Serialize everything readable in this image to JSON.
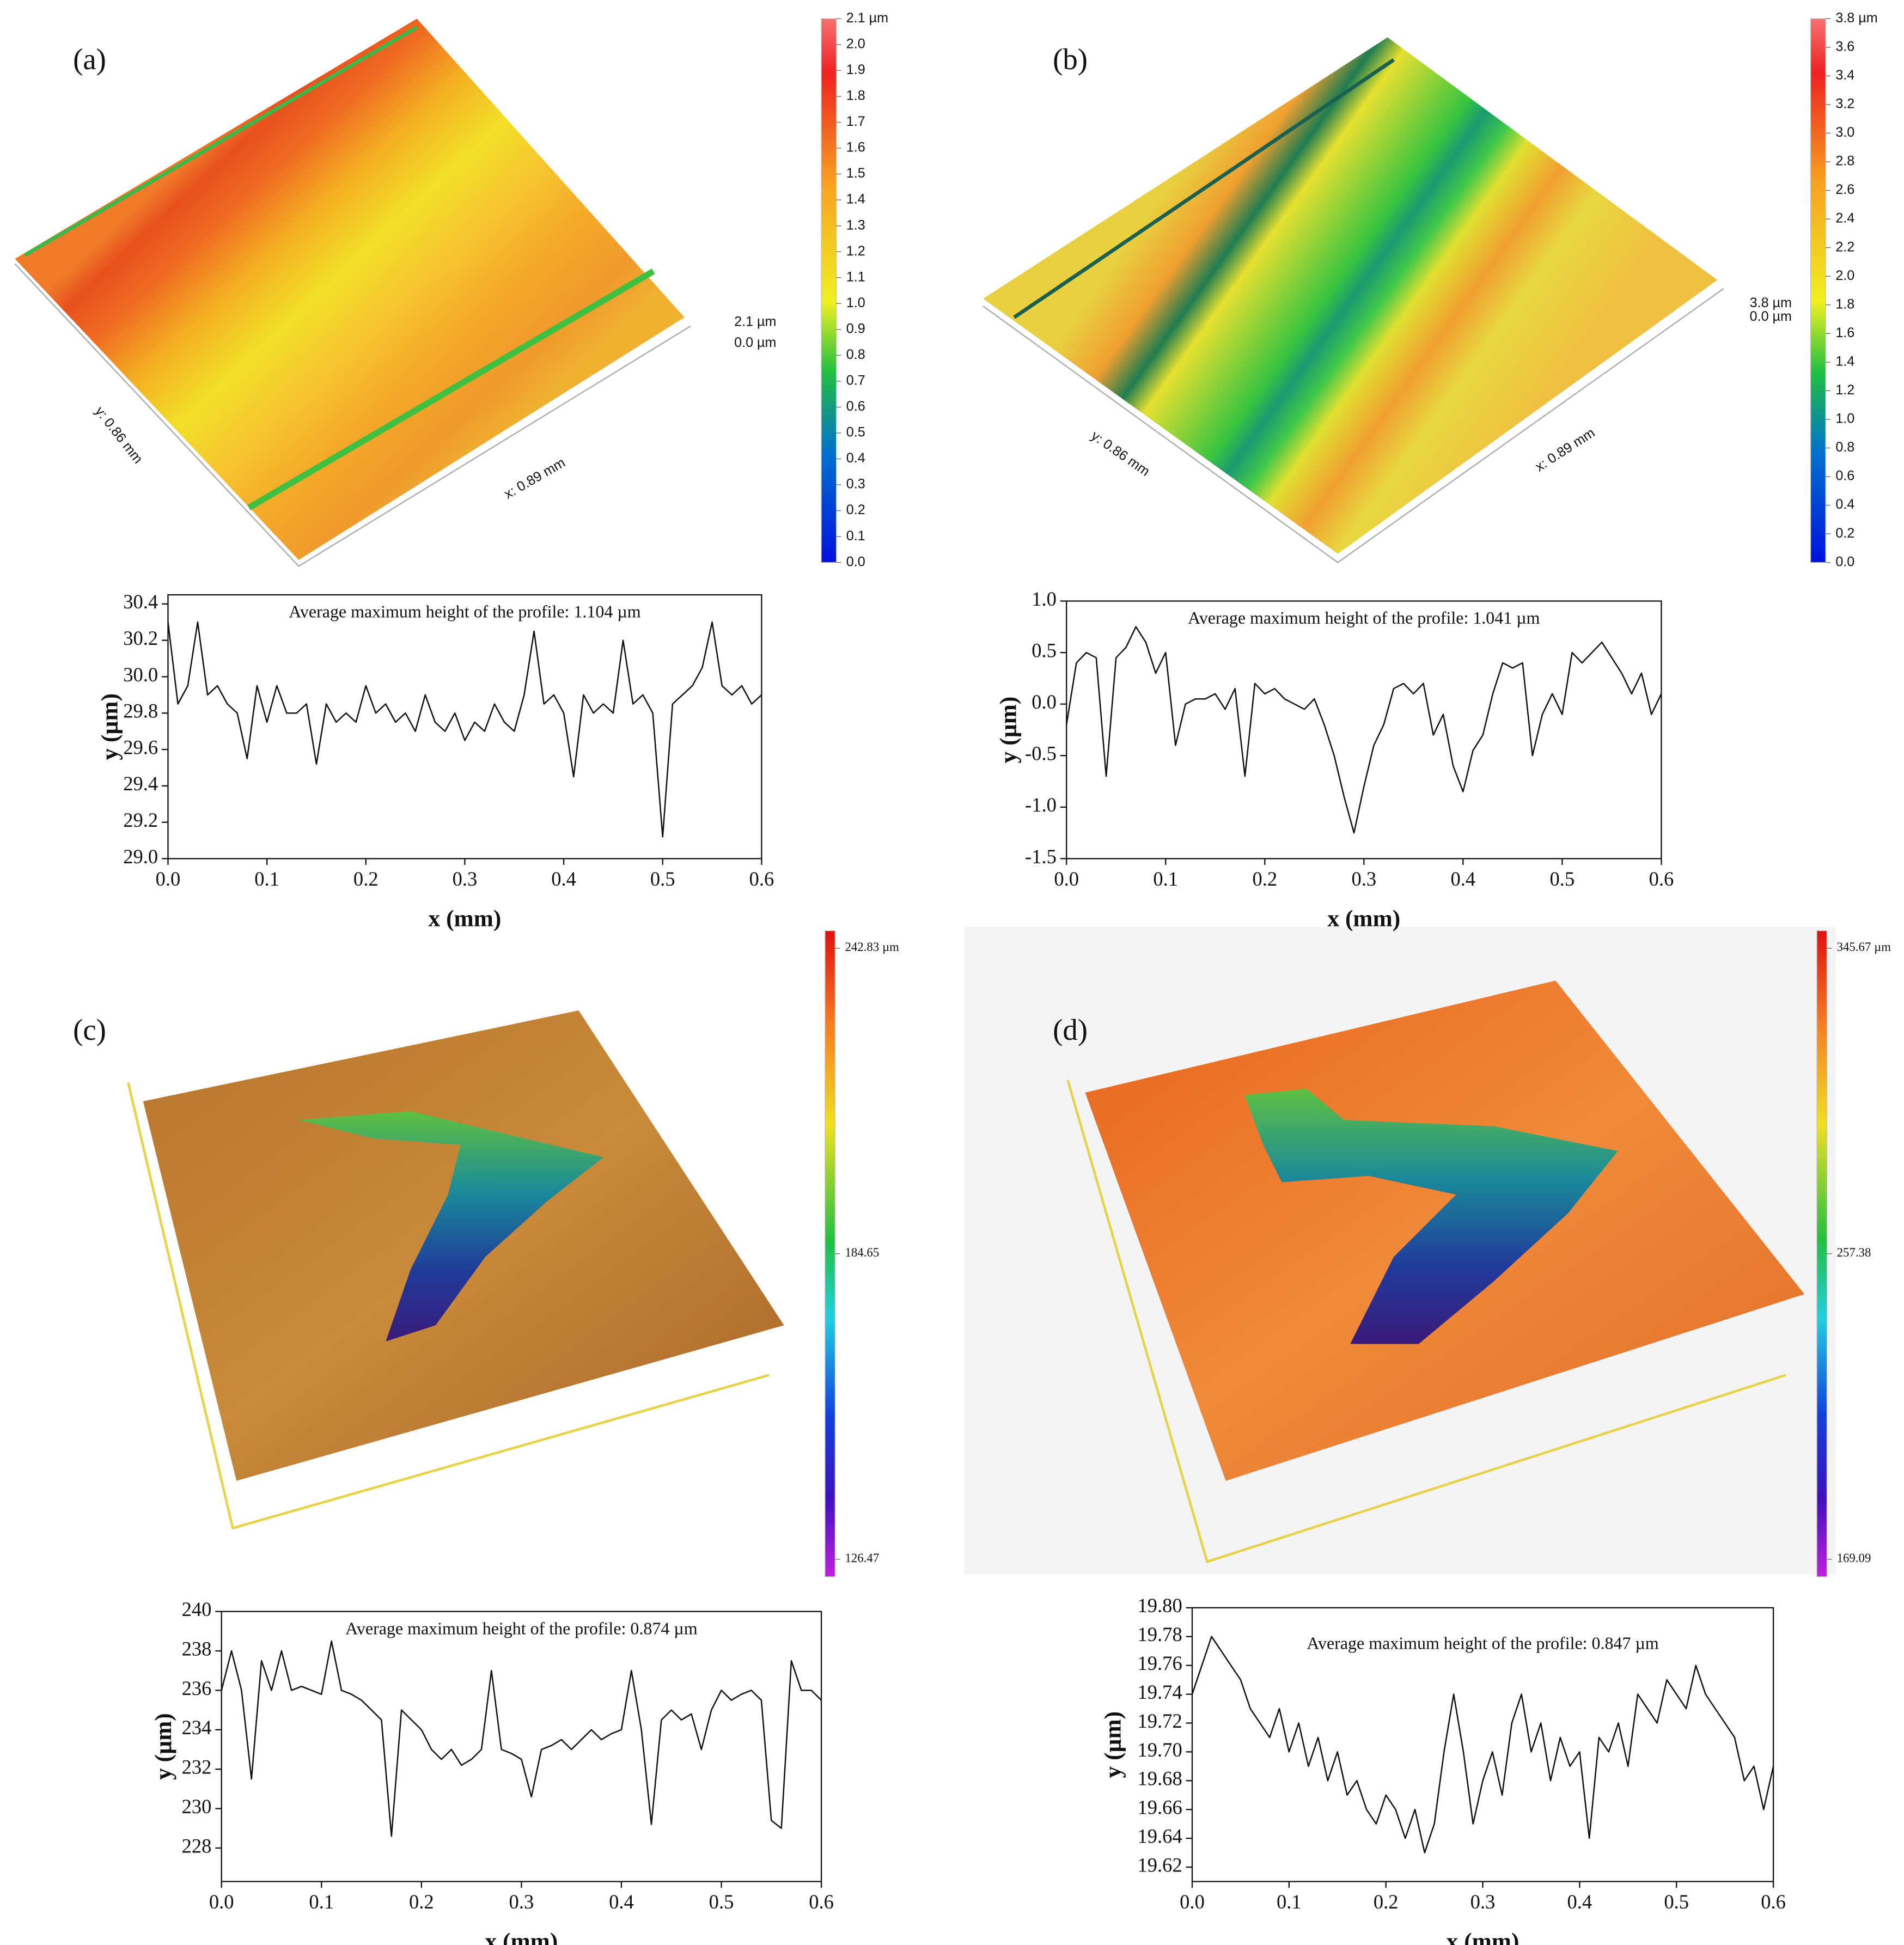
{
  "panels": [
    {
      "label": "(a)",
      "colorbar": {
        "lim": [
          0,
          2.1
        ],
        "ticks": [
          {
            "value": 0,
            "label": "0.0"
          },
          0.1,
          0.2,
          0.3,
          0.4,
          0.5,
          0.6,
          0.7,
          0.8,
          0.9,
          {
            "value": 1,
            "label": "1.0"
          },
          1.1,
          1.2,
          1.3,
          1.4,
          1.5,
          1.6,
          1.7,
          1.8,
          1.9,
          {
            "value": 2,
            "label": "2.0"
          },
          {
            "value": 2.1,
            "label": "2.1 µm"
          }
        ]
      },
      "surface_labels": [
        "y: 0.86 mm",
        "x: 0.89 mm",
        "2.1 µm",
        "0.0 µm"
      ]
    },
    {
      "label": "(b)",
      "colorbar": {
        "lim": [
          0,
          3.8
        ],
        "ticks": [
          {
            "value": 0,
            "label": "0.0"
          },
          0.2,
          0.4,
          0.6,
          0.8,
          {
            "value": 1,
            "label": "1.0"
          },
          1.2,
          1.4,
          1.6,
          1.8,
          {
            "value": 2,
            "label": "2.0"
          },
          2.2,
          2.4,
          2.6,
          2.8,
          {
            "value": 3,
            "label": "3.0"
          },
          3.2,
          3.4,
          3.6,
          {
            "value": 3.8,
            "label": "3.8 µm"
          }
        ]
      },
      "surface_labels": [
        "y: 0.86 mm",
        "x: 0.89 mm",
        "3.8 µm",
        "0.0 µm"
      ]
    },
    {
      "label": "(c)",
      "colorbar": {
        "lim": [
          126.47,
          242.83
        ],
        "ticks": [
          126.47,
          184.65,
          {
            "value": 242.83,
            "label": "242.83 µm"
          }
        ]
      }
    },
    {
      "label": "(d)",
      "colorbar": {
        "lim": [
          169.09,
          345.67
        ],
        "ticks": [
          169.09,
          257.38,
          {
            "value": 345.67,
            "label": "345.67 µm"
          }
        ]
      }
    }
  ],
  "chart_data": [
    {
      "type": "line",
      "annotation": "Average maximum height of the profile: 1.104 µm",
      "xlabel": "x (mm)",
      "ylabel": "y (µm)",
      "x": [
        0,
        0.01,
        0.02,
        0.03,
        0.04,
        0.05,
        0.06,
        0.07,
        0.08,
        0.09,
        0.1,
        0.11,
        0.12,
        0.13,
        0.14,
        0.15,
        0.16,
        0.17,
        0.18,
        0.19,
        0.2,
        0.21,
        0.22,
        0.23,
        0.24,
        0.25,
        0.26,
        0.27,
        0.28,
        0.29,
        0.3,
        0.31,
        0.32,
        0.33,
        0.34,
        0.35,
        0.36,
        0.37,
        0.38,
        0.39,
        0.4,
        0.41,
        0.42,
        0.43,
        0.44,
        0.45,
        0.46,
        0.47,
        0.48,
        0.49,
        0.5,
        0.51,
        0.52,
        0.53,
        0.54,
        0.55,
        0.56,
        0.57,
        0.58,
        0.59,
        0.6
      ],
      "values": [
        30.3,
        29.85,
        29.95,
        30.3,
        29.9,
        29.95,
        29.85,
        29.8,
        29.55,
        29.95,
        29.75,
        29.95,
        29.8,
        29.8,
        29.85,
        29.52,
        29.85,
        29.75,
        29.8,
        29.75,
        29.95,
        29.8,
        29.85,
        29.75,
        29.8,
        29.7,
        29.9,
        29.75,
        29.7,
        29.8,
        29.65,
        29.75,
        29.7,
        29.85,
        29.75,
        29.7,
        29.9,
        30.25,
        29.85,
        29.9,
        29.8,
        29.45,
        29.9,
        29.8,
        29.85,
        29.8,
        30.2,
        29.85,
        29.9,
        29.8,
        29.12,
        29.85,
        29.9,
        29.95,
        30.05,
        30.3,
        29.95,
        29.9,
        29.95,
        29.85,
        29.9
      ],
      "color": "#111111",
      "xlim": [
        0,
        0.6
      ],
      "ylim": [
        29.0,
        30.45
      ],
      "xticks": [
        {
          "value": 0,
          "label": "0.0"
        },
        0.1,
        0.2,
        0.3,
        0.4,
        0.5,
        0.6
      ],
      "yticks": [
        {
          "value": 29,
          "label": "29.0"
        },
        29.2,
        29.4,
        29.6,
        29.8,
        {
          "value": 30,
          "label": "30.0"
        },
        30.2,
        30.4
      ]
    },
    {
      "type": "line",
      "annotation": "Average maximum height of the profile: 1.041 µm",
      "xlabel": "x (mm)",
      "ylabel": "y (µm)",
      "x": [
        0,
        0.01,
        0.02,
        0.03,
        0.04,
        0.05,
        0.06,
        0.07,
        0.08,
        0.09,
        0.1,
        0.11,
        0.12,
        0.13,
        0.14,
        0.15,
        0.16,
        0.17,
        0.18,
        0.19,
        0.2,
        0.21,
        0.22,
        0.23,
        0.24,
        0.25,
        0.26,
        0.27,
        0.28,
        0.29,
        0.3,
        0.31,
        0.32,
        0.33,
        0.34,
        0.35,
        0.36,
        0.37,
        0.38,
        0.39,
        0.4,
        0.41,
        0.42,
        0.43,
        0.44,
        0.45,
        0.46,
        0.47,
        0.48,
        0.49,
        0.5,
        0.51,
        0.52,
        0.53,
        0.54,
        0.55,
        0.56,
        0.57,
        0.58,
        0.59,
        0.6
      ],
      "values": [
        -0.2,
        0.4,
        0.5,
        0.45,
        -0.7,
        0.45,
        0.55,
        0.75,
        0.6,
        0.3,
        0.5,
        -0.4,
        0.0,
        0.05,
        0.05,
        0.1,
        -0.05,
        0.15,
        -0.7,
        0.2,
        0.1,
        0.15,
        0.05,
        0.0,
        -0.05,
        0.05,
        -0.2,
        -0.5,
        -0.9,
        -1.25,
        -0.8,
        -0.4,
        -0.2,
        0.15,
        0.2,
        0.1,
        0.2,
        -0.3,
        -0.1,
        -0.6,
        -0.85,
        -0.45,
        -0.3,
        0.1,
        0.4,
        0.35,
        0.4,
        -0.5,
        -0.1,
        0.1,
        -0.1,
        0.5,
        0.4,
        0.5,
        0.6,
        0.45,
        0.3,
        0.1,
        0.3,
        -0.1,
        0.1
      ],
      "color": "#111111",
      "xlim": [
        0,
        0.6
      ],
      "ylim": [
        -1.5,
        1.0
      ],
      "xticks": [
        {
          "value": 0,
          "label": "0.0"
        },
        0.1,
        0.2,
        0.3,
        0.4,
        0.5,
        0.6
      ],
      "yticks": [
        -1.5,
        {
          "value": -1,
          "label": "-1.0"
        },
        -0.5,
        {
          "value": 0,
          "label": "0.0"
        },
        0.5,
        {
          "value": 1,
          "label": "1.0"
        }
      ]
    },
    {
      "type": "line",
      "annotation": "Average maximum height of the profile: 0.874 µm",
      "xlabel": "x (mm)",
      "ylabel": "y (µm)",
      "x": [
        0,
        0.01,
        0.02,
        0.03,
        0.04,
        0.05,
        0.06,
        0.07,
        0.08,
        0.09,
        0.1,
        0.11,
        0.12,
        0.13,
        0.14,
        0.15,
        0.16,
        0.17,
        0.18,
        0.19,
        0.2,
        0.21,
        0.22,
        0.23,
        0.24,
        0.25,
        0.26,
        0.27,
        0.28,
        0.29,
        0.3,
        0.31,
        0.32,
        0.33,
        0.34,
        0.35,
        0.36,
        0.37,
        0.38,
        0.39,
        0.4,
        0.41,
        0.42,
        0.43,
        0.44,
        0.45,
        0.46,
        0.47,
        0.48,
        0.49,
        0.5,
        0.51,
        0.52,
        0.53,
        0.54,
        0.55,
        0.56,
        0.57,
        0.58,
        0.59,
        0.6
      ],
      "values": [
        236,
        238,
        236,
        231.5,
        237.5,
        236,
        238,
        236,
        236.2,
        236,
        235.8,
        238.5,
        236,
        235.8,
        235.5,
        235,
        234.5,
        228.6,
        235,
        234.5,
        234,
        233,
        232.5,
        233,
        232.2,
        232.5,
        233,
        237,
        233,
        232.8,
        232.5,
        230.6,
        233,
        233.2,
        233.5,
        233,
        233.5,
        234,
        233.5,
        233.8,
        234,
        237,
        234,
        229.2,
        234.5,
        235,
        234.5,
        234.8,
        233,
        235,
        236,
        235.5,
        235.8,
        236,
        235.5,
        229.4,
        229,
        237.5,
        236,
        236,
        235.5
      ],
      "color": "#111111",
      "xlim": [
        0,
        0.6
      ],
      "ylim": [
        226.3,
        240
      ],
      "xticks": [
        {
          "value": 0,
          "label": "0.0"
        },
        0.1,
        0.2,
        0.3,
        0.4,
        0.5,
        0.6
      ],
      "yticks": [
        228,
        230,
        232,
        234,
        236,
        238,
        240
      ]
    },
    {
      "type": "line",
      "annotation": "Average maximum height of the profile: 0.847 µm",
      "xlabel": "x (mm)",
      "ylabel": "y (µm)",
      "x": [
        0,
        0.01,
        0.02,
        0.03,
        0.04,
        0.05,
        0.06,
        0.07,
        0.08,
        0.09,
        0.1,
        0.11,
        0.12,
        0.13,
        0.14,
        0.15,
        0.16,
        0.17,
        0.18,
        0.19,
        0.2,
        0.21,
        0.22,
        0.23,
        0.24,
        0.25,
        0.26,
        0.27,
        0.28,
        0.29,
        0.3,
        0.31,
        0.32,
        0.33,
        0.34,
        0.35,
        0.36,
        0.37,
        0.38,
        0.39,
        0.4,
        0.41,
        0.42,
        0.43,
        0.44,
        0.45,
        0.46,
        0.47,
        0.48,
        0.49,
        0.5,
        0.51,
        0.52,
        0.53,
        0.54,
        0.55,
        0.56,
        0.57,
        0.58,
        0.59,
        0.6
      ],
      "values": [
        19.74,
        19.76,
        19.78,
        19.77,
        19.76,
        19.75,
        19.73,
        19.72,
        19.71,
        19.73,
        19.7,
        19.72,
        19.69,
        19.71,
        19.68,
        19.7,
        19.67,
        19.68,
        19.66,
        19.65,
        19.67,
        19.66,
        19.64,
        19.66,
        19.63,
        19.65,
        19.7,
        19.74,
        19.7,
        19.65,
        19.68,
        19.7,
        19.67,
        19.72,
        19.74,
        19.7,
        19.72,
        19.68,
        19.71,
        19.69,
        19.7,
        19.64,
        19.71,
        19.7,
        19.72,
        19.69,
        19.74,
        19.73,
        19.72,
        19.75,
        19.74,
        19.73,
        19.76,
        19.74,
        19.73,
        19.72,
        19.71,
        19.68,
        19.69,
        19.66,
        19.69
      ],
      "color": "#111111",
      "xlim": [
        0,
        0.6
      ],
      "ylim": [
        19.61,
        19.8
      ],
      "xticks": [
        {
          "value": 0,
          "label": "0.0"
        },
        0.1,
        0.2,
        0.3,
        0.4,
        0.5,
        0.6
      ],
      "yticks": [
        19.62,
        19.64,
        19.66,
        19.68,
        {
          "value": 19.7,
          "label": "19.70"
        },
        19.72,
        19.74,
        19.76,
        19.78,
        {
          "value": 19.8,
          "label": "19.80"
        }
      ]
    }
  ]
}
